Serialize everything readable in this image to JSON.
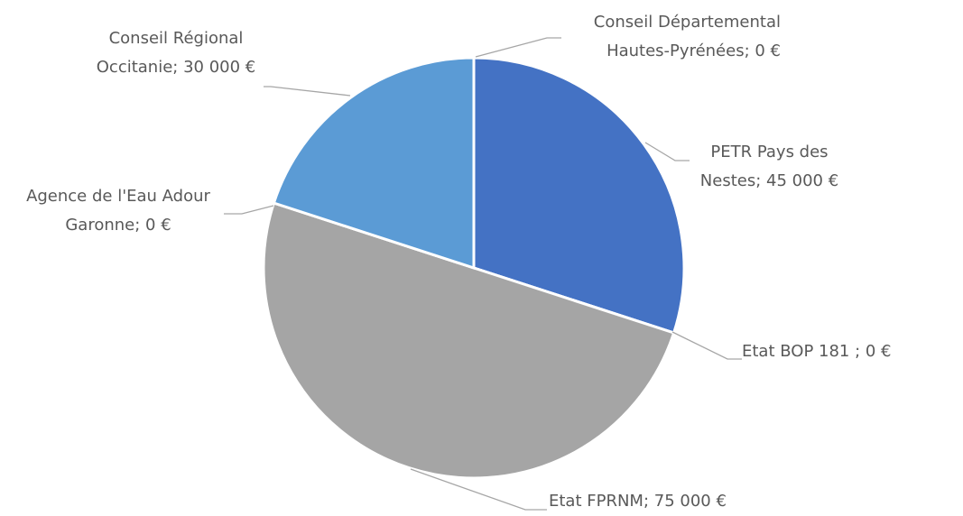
{
  "chart_data": {
    "type": "pie",
    "categories": [
      "Conseil Départemental Hautes-Pyrénées",
      "PETR Pays des Nestes",
      "Etat BOP 181",
      "Etat FPRNM",
      "Agence de l'Eau Adour Garonne",
      "Conseil Régional Occitanie"
    ],
    "values": [
      0,
      45000,
      0,
      75000,
      0,
      30000
    ],
    "value_labels": [
      "; 0 €",
      "; 45 000 €",
      " ; 0 €",
      "; 75 000 €",
      "; 0 €",
      "; 30 000 €"
    ],
    "colors": [
      "#ed7d31",
      "#4472c4",
      "#ffc000",
      "#a5a5a5",
      "#70ad47",
      "#5b9bd5"
    ]
  }
}
